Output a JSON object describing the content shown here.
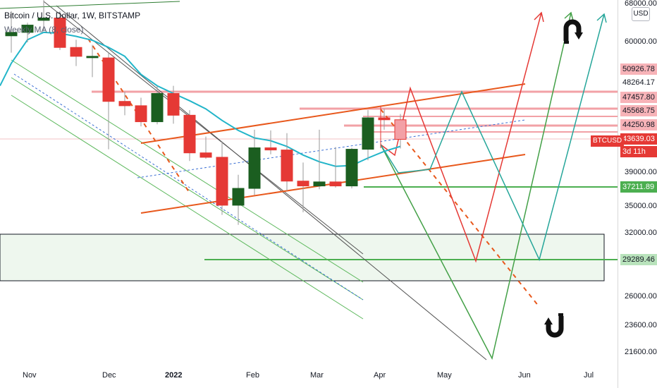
{
  "header": {
    "symbol_title": "Bitcoin / U.S. Dollar, 1W, BITSTAMP",
    "indicator": "Weekly MA (8, close)"
  },
  "price_axis": {
    "currency_badge": "USD",
    "ticks": [
      "68000.00",
      "60000.00",
      "39000.00",
      "35000.00",
      "32000.00",
      "26000.00",
      "23600.00",
      "21600.00"
    ]
  },
  "price_tags": [
    {
      "label": "50926.78",
      "price": 50926.78,
      "bg": "#f7b3b8"
    },
    {
      "label": "48264.17",
      "price": 48264.17,
      "bg": "#ffffff"
    },
    {
      "label": "47457.80",
      "price": 47457.8,
      "bg": "#f7b3b8"
    },
    {
      "label": "45568.75",
      "price": 45568.75,
      "bg": "#f7b3b8"
    },
    {
      "label": "44250.98",
      "price": 44250.98,
      "bg": "#f7b3b8"
    },
    {
      "label": "43639.03",
      "price": 43639.03,
      "bg": "#e53935"
    },
    {
      "label": "37211.89",
      "price": 37211.89,
      "bg": "#4caf50"
    },
    {
      "label": "29289.46",
      "price": 29289.46,
      "bg": "#b9e3bc"
    }
  ],
  "current_symbol_tag": "BTCUSD",
  "countdown": "3d 11h",
  "x_axis": {
    "labels": [
      "Nov",
      "Dec",
      "2022",
      "Feb",
      "Mar",
      "Apr",
      "May",
      "Jun",
      "Jul"
    ]
  },
  "colors": {
    "bull": "#1b5e20",
    "bear": "#e53935",
    "ma": "#22b5c9",
    "channel": "#e8581c",
    "resistance": "#ef8a91",
    "support": "#4caf50",
    "zone_border": "#131722",
    "zone_fill": "#eef7ee"
  },
  "icons": [
    "up-arrow-icon",
    "down-arrow-icon"
  ],
  "chart_data": {
    "type": "candlestick",
    "ylim": [
      21000,
      69000
    ],
    "scale": "log",
    "candles": [
      {
        "o": 61300,
        "h": 66500,
        "l": 58000,
        "c": 62000
      },
      {
        "o": 62000,
        "h": 64000,
        "l": 60000,
        "c": 63500
      },
      {
        "o": 64500,
        "h": 69000,
        "l": 62200,
        "c": 65000
      },
      {
        "o": 65000,
        "h": 66500,
        "l": 58500,
        "c": 59000
      },
      {
        "o": 59000,
        "h": 60500,
        "l": 55500,
        "c": 57300
      },
      {
        "o": 57300,
        "h": 59500,
        "l": 53500,
        "c": 57300
      },
      {
        "o": 57000,
        "h": 58000,
        "l": 42200,
        "c": 49400
      },
      {
        "o": 49400,
        "h": 51000,
        "l": 47200,
        "c": 48700
      },
      {
        "o": 48700,
        "h": 50000,
        "l": 45500,
        "c": 46200
      },
      {
        "o": 46200,
        "h": 52000,
        "l": 45800,
        "c": 50700
      },
      {
        "o": 50700,
        "h": 52000,
        "l": 45900,
        "c": 47200
      },
      {
        "o": 47200,
        "h": 48000,
        "l": 40600,
        "c": 41700
      },
      {
        "o": 41700,
        "h": 44000,
        "l": 40900,
        "c": 41100
      },
      {
        "o": 41100,
        "h": 43300,
        "l": 34000,
        "c": 35100
      },
      {
        "o": 35100,
        "h": 38800,
        "l": 32900,
        "c": 37100
      },
      {
        "o": 37100,
        "h": 45000,
        "l": 36300,
        "c": 42400
      },
      {
        "o": 42400,
        "h": 44900,
        "l": 41500,
        "c": 42100
      },
      {
        "o": 42100,
        "h": 44500,
        "l": 36800,
        "c": 38000
      },
      {
        "o": 38000,
        "h": 40400,
        "l": 34300,
        "c": 37400
      },
      {
        "o": 37400,
        "h": 45000,
        "l": 37000,
        "c": 37900
      },
      {
        "o": 37900,
        "h": 42500,
        "l": 37200,
        "c": 37400
      },
      {
        "o": 37400,
        "h": 42400,
        "l": 37100,
        "c": 42200
      },
      {
        "o": 42200,
        "h": 48000,
        "l": 40700,
        "c": 46800
      },
      {
        "o": 46800,
        "h": 48200,
        "l": 45000,
        "c": 46500
      },
      {
        "o": 46500,
        "h": 47400,
        "l": 42300,
        "c": 43600
      }
    ],
    "ma": [
      56000,
      60500,
      62000,
      61800,
      61200,
      60400,
      59000,
      57300,
      54000,
      52000,
      50700,
      49500,
      48200,
      46400,
      44900,
      43800,
      43400,
      42600,
      41400,
      40500,
      39900,
      40000,
      41000,
      41900,
      42600
    ]
  }
}
